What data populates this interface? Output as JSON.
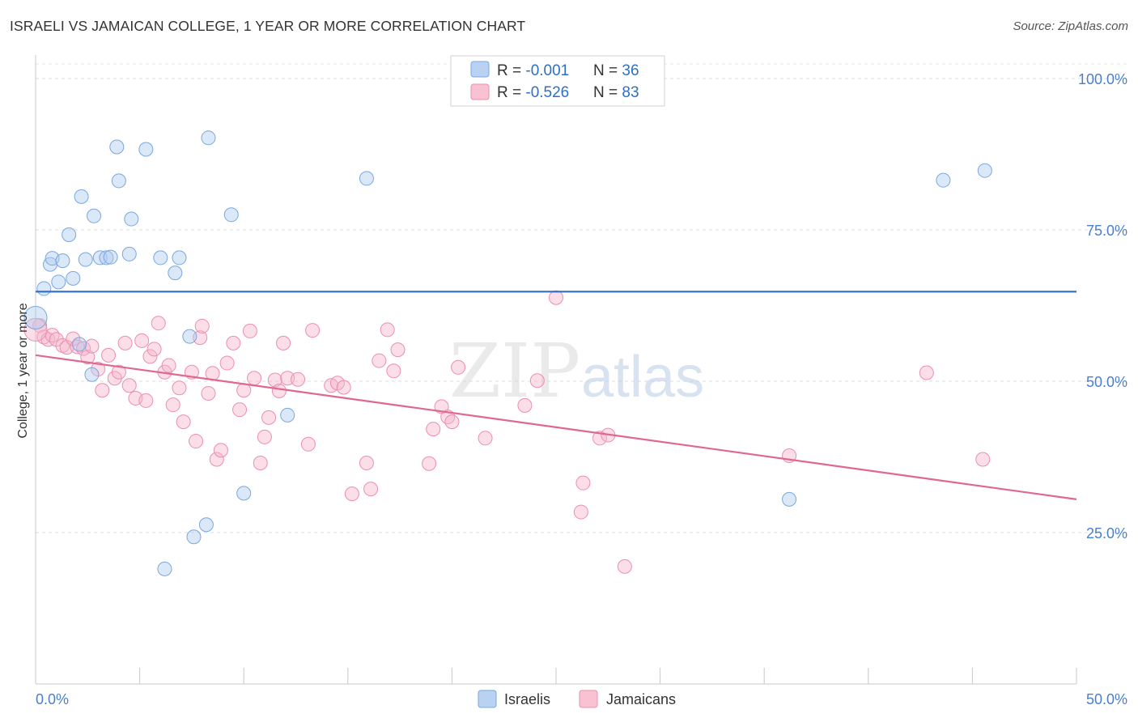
{
  "chart_data": {
    "type": "scatter",
    "title": "ISRAELI VS JAMAICAN COLLEGE, 1 YEAR OR MORE CORRELATION CHART",
    "source": "Source: ZipAtlas.com",
    "xlabel": "",
    "ylabel": "College, 1 year or more",
    "xlim": [
      0,
      50
    ],
    "ylim": [
      0,
      105
    ],
    "x_tick_labels": [
      "0.0%",
      "50.0%"
    ],
    "y_tick_labels": [
      "100.0%",
      "75.0%",
      "50.0%",
      "25.0%"
    ],
    "y_tick_values": [
      100,
      75,
      50,
      25
    ],
    "grid": true,
    "legend_position": "top-center",
    "watermark": "ZIPatlas",
    "stats": [
      {
        "r_label": "R = ",
        "r_value": "-0.001",
        "n_label": "N = ",
        "n_value": "36"
      },
      {
        "r_label": "R = ",
        "r_value": "-0.526",
        "n_label": "N = ",
        "n_value": "83"
      }
    ],
    "series": [
      {
        "name": "Israelis",
        "color": "#8fb7e8",
        "line_color": "#2e6fc4",
        "trend": {
          "x": [
            0,
            50
          ],
          "y": [
            64.8,
            64.8
          ]
        },
        "points": [
          [
            0.0,
            60.5
          ],
          [
            0.4,
            65.3
          ],
          [
            0.7,
            69.3
          ],
          [
            0.8,
            70.3
          ],
          [
            1.1,
            66.4
          ],
          [
            1.3,
            69.9
          ],
          [
            1.6,
            74.2
          ],
          [
            1.8,
            67.0
          ],
          [
            2.2,
            80.5
          ],
          [
            2.4,
            70.1
          ],
          [
            2.8,
            77.3
          ],
          [
            3.1,
            70.4
          ],
          [
            3.4,
            70.4
          ],
          [
            3.6,
            70.5
          ],
          [
            3.9,
            88.7
          ],
          [
            4.0,
            83.1
          ],
          [
            4.5,
            71.0
          ],
          [
            4.6,
            76.8
          ],
          [
            5.3,
            88.3
          ],
          [
            6.0,
            70.4
          ],
          [
            6.7,
            67.9
          ],
          [
            6.9,
            70.4
          ],
          [
            7.4,
            57.4
          ],
          [
            8.3,
            90.2
          ],
          [
            9.4,
            77.5
          ],
          [
            6.2,
            19.0
          ],
          [
            7.6,
            24.3
          ],
          [
            8.2,
            26.3
          ],
          [
            10.0,
            31.5
          ],
          [
            12.1,
            44.4
          ],
          [
            2.7,
            51.1
          ],
          [
            2.1,
            56.1
          ],
          [
            15.9,
            83.5
          ],
          [
            36.2,
            30.5
          ],
          [
            43.6,
            83.2
          ],
          [
            45.6,
            84.8
          ]
        ]
      },
      {
        "name": "Jamaicans",
        "color": "#f4a7c0",
        "line_color": "#e06792",
        "trend": {
          "x": [
            0,
            50
          ],
          "y": [
            54.3,
            30.5
          ]
        },
        "points": [
          [
            0.2,
            59.2
          ],
          [
            0.4,
            57.3
          ],
          [
            0.6,
            56.9
          ],
          [
            0.8,
            57.6
          ],
          [
            1.0,
            56.9
          ],
          [
            1.3,
            55.9
          ],
          [
            1.5,
            55.6
          ],
          [
            1.8,
            57.0
          ],
          [
            2.0,
            55.7
          ],
          [
            2.3,
            55.4
          ],
          [
            2.5,
            54.0
          ],
          [
            2.7,
            55.8
          ],
          [
            3.0,
            52.0
          ],
          [
            3.2,
            48.5
          ],
          [
            3.5,
            54.3
          ],
          [
            3.8,
            50.5
          ],
          [
            4.0,
            51.5
          ],
          [
            4.3,
            56.3
          ],
          [
            4.5,
            49.3
          ],
          [
            4.8,
            47.2
          ],
          [
            5.1,
            56.7
          ],
          [
            5.3,
            46.8
          ],
          [
            5.5,
            54.1
          ],
          [
            5.7,
            55.3
          ],
          [
            5.9,
            59.6
          ],
          [
            6.2,
            51.5
          ],
          [
            6.4,
            52.6
          ],
          [
            6.6,
            46.1
          ],
          [
            6.9,
            48.9
          ],
          [
            7.1,
            43.3
          ],
          [
            7.5,
            51.5
          ],
          [
            7.7,
            40.1
          ],
          [
            7.9,
            57.2
          ],
          [
            8.0,
            59.1
          ],
          [
            8.3,
            48.0
          ],
          [
            8.5,
            51.3
          ],
          [
            8.7,
            37.1
          ],
          [
            8.9,
            38.6
          ],
          [
            9.2,
            53.0
          ],
          [
            9.5,
            56.3
          ],
          [
            9.8,
            45.3
          ],
          [
            10.0,
            48.5
          ],
          [
            10.3,
            58.3
          ],
          [
            10.5,
            50.5
          ],
          [
            10.8,
            36.5
          ],
          [
            11.0,
            40.8
          ],
          [
            11.2,
            44.0
          ],
          [
            11.5,
            50.2
          ],
          [
            11.7,
            48.4
          ],
          [
            11.9,
            56.3
          ],
          [
            12.1,
            50.5
          ],
          [
            12.6,
            50.3
          ],
          [
            13.1,
            39.6
          ],
          [
            13.3,
            58.4
          ],
          [
            14.2,
            49.3
          ],
          [
            14.5,
            49.7
          ],
          [
            14.8,
            49.0
          ],
          [
            15.2,
            31.4
          ],
          [
            15.9,
            36.5
          ],
          [
            16.1,
            32.2
          ],
          [
            16.5,
            53.4
          ],
          [
            16.9,
            58.5
          ],
          [
            17.2,
            51.7
          ],
          [
            17.4,
            55.2
          ],
          [
            18.9,
            36.4
          ],
          [
            19.1,
            42.1
          ],
          [
            19.5,
            45.8
          ],
          [
            19.8,
            44.1
          ],
          [
            20.0,
            43.3
          ],
          [
            20.3,
            52.3
          ],
          [
            21.6,
            40.6
          ],
          [
            23.5,
            46.0
          ],
          [
            24.1,
            50.1
          ],
          [
            25.0,
            63.8
          ],
          [
            26.2,
            28.4
          ],
          [
            26.3,
            33.2
          ],
          [
            27.1,
            40.6
          ],
          [
            27.5,
            41.1
          ],
          [
            28.3,
            19.4
          ],
          [
            36.2,
            37.7
          ],
          [
            42.8,
            51.4
          ],
          [
            45.5,
            37.1
          ],
          [
            0.0,
            58.5
          ]
        ]
      }
    ]
  }
}
